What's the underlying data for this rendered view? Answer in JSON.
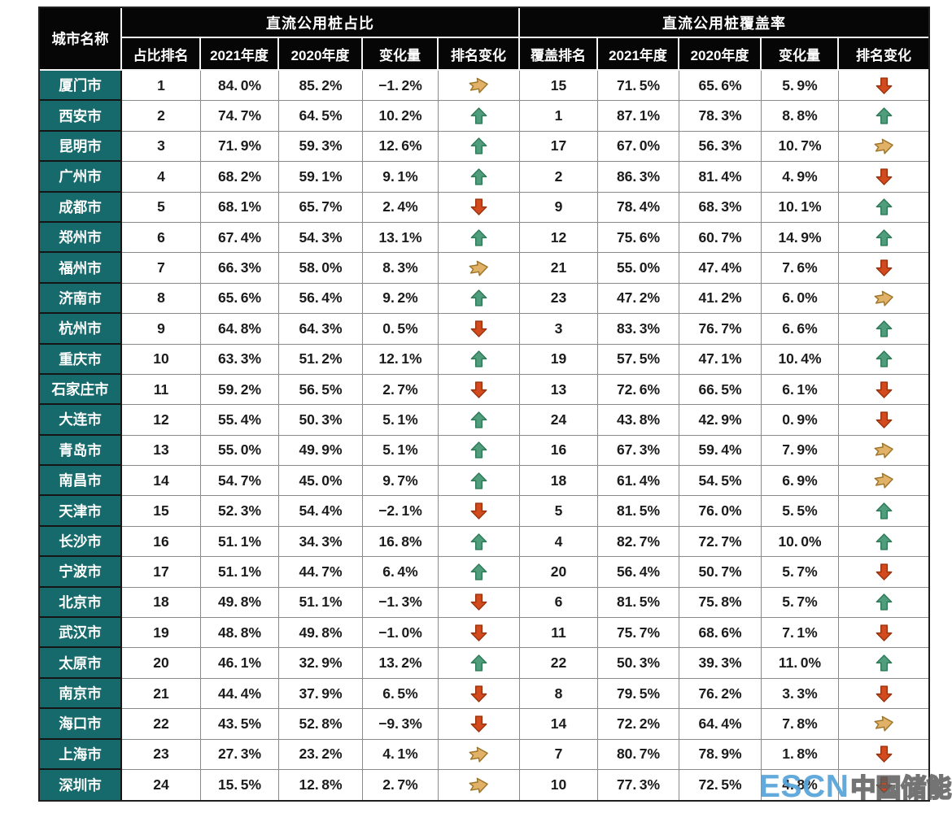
{
  "colors": {
    "header_bg": "#060606",
    "header_text": "#ffffff",
    "city_bg": "#166a6b",
    "city_text": "#ffffff",
    "grid_line": "#8a8a8a",
    "cell_text": "#1b1b1b",
    "up_arrow": "#4f9d7c",
    "up_arrow_edge": "#2e7a57",
    "down_arrow": "#d34a1e",
    "down_arrow_edge": "#99330f",
    "right_arrow": "#e0b166",
    "right_arrow_edge": "#9b742a",
    "watermark_blue": "#57a4d9"
  },
  "watermark": {
    "logo_text": "ESCN",
    "site_text": "中国储能网"
  },
  "chart_data": {
    "type": "table",
    "corner_header": "城市名称",
    "groups": [
      {
        "title": "直流公用桩占比",
        "columns": [
          "占比排名",
          "2021年度",
          "2020年度",
          "变化量",
          "排名变化"
        ]
      },
      {
        "title": "直流公用桩覆盖率",
        "columns": [
          "覆盖排名",
          "2021年度",
          "2020年度",
          "变化量",
          "排名变化"
        ]
      }
    ],
    "value_unit": "%",
    "trend_legend": {
      "up": "排名上升(绿色上箭头)",
      "right": "排名持平(黄色右箭头)",
      "down": "排名下降(红色下箭头)"
    },
    "rows": [
      {
        "city": "厦门市",
        "share": {
          "rank": 1,
          "y2021": 84.0,
          "y2020": 85.2,
          "change": -1.2,
          "trend": "right"
        },
        "coverage": {
          "rank": 15,
          "y2021": 71.5,
          "y2020": 65.6,
          "change": 5.9,
          "trend": "down"
        }
      },
      {
        "city": "西安市",
        "share": {
          "rank": 2,
          "y2021": 74.7,
          "y2020": 64.5,
          "change": 10.2,
          "trend": "up"
        },
        "coverage": {
          "rank": 1,
          "y2021": 87.1,
          "y2020": 78.3,
          "change": 8.8,
          "trend": "up"
        }
      },
      {
        "city": "昆明市",
        "share": {
          "rank": 3,
          "y2021": 71.9,
          "y2020": 59.3,
          "change": 12.6,
          "trend": "up"
        },
        "coverage": {
          "rank": 17,
          "y2021": 67.0,
          "y2020": 56.3,
          "change": 10.7,
          "trend": "right"
        }
      },
      {
        "city": "广州市",
        "share": {
          "rank": 4,
          "y2021": 68.2,
          "y2020": 59.1,
          "change": 9.1,
          "trend": "up"
        },
        "coverage": {
          "rank": 2,
          "y2021": 86.3,
          "y2020": 81.4,
          "change": 4.9,
          "trend": "down"
        }
      },
      {
        "city": "成都市",
        "share": {
          "rank": 5,
          "y2021": 68.1,
          "y2020": 65.7,
          "change": 2.4,
          "trend": "down"
        },
        "coverage": {
          "rank": 9,
          "y2021": 78.4,
          "y2020": 68.3,
          "change": 10.1,
          "trend": "up"
        }
      },
      {
        "city": "郑州市",
        "share": {
          "rank": 6,
          "y2021": 67.4,
          "y2020": 54.3,
          "change": 13.1,
          "trend": "up"
        },
        "coverage": {
          "rank": 12,
          "y2021": 75.6,
          "y2020": 60.7,
          "change": 14.9,
          "trend": "up"
        }
      },
      {
        "city": "福州市",
        "share": {
          "rank": 7,
          "y2021": 66.3,
          "y2020": 58.0,
          "change": 8.3,
          "trend": "right"
        },
        "coverage": {
          "rank": 21,
          "y2021": 55.0,
          "y2020": 47.4,
          "change": 7.6,
          "trend": "down"
        }
      },
      {
        "city": "济南市",
        "share": {
          "rank": 8,
          "y2021": 65.6,
          "y2020": 56.4,
          "change": 9.2,
          "trend": "up"
        },
        "coverage": {
          "rank": 23,
          "y2021": 47.2,
          "y2020": 41.2,
          "change": 6.0,
          "trend": "right"
        }
      },
      {
        "city": "杭州市",
        "share": {
          "rank": 9,
          "y2021": 64.8,
          "y2020": 64.3,
          "change": 0.5,
          "trend": "down"
        },
        "coverage": {
          "rank": 3,
          "y2021": 83.3,
          "y2020": 76.7,
          "change": 6.6,
          "trend": "up"
        }
      },
      {
        "city": "重庆市",
        "share": {
          "rank": 10,
          "y2021": 63.3,
          "y2020": 51.2,
          "change": 12.1,
          "trend": "up"
        },
        "coverage": {
          "rank": 19,
          "y2021": 57.5,
          "y2020": 47.1,
          "change": 10.4,
          "trend": "up"
        }
      },
      {
        "city": "石家庄市",
        "share": {
          "rank": 11,
          "y2021": 59.2,
          "y2020": 56.5,
          "change": 2.7,
          "trend": "down"
        },
        "coverage": {
          "rank": 13,
          "y2021": 72.6,
          "y2020": 66.5,
          "change": 6.1,
          "trend": "down"
        }
      },
      {
        "city": "大连市",
        "share": {
          "rank": 12,
          "y2021": 55.4,
          "y2020": 50.3,
          "change": 5.1,
          "trend": "up"
        },
        "coverage": {
          "rank": 24,
          "y2021": 43.8,
          "y2020": 42.9,
          "change": 0.9,
          "trend": "down"
        }
      },
      {
        "city": "青岛市",
        "share": {
          "rank": 13,
          "y2021": 55.0,
          "y2020": 49.9,
          "change": 5.1,
          "trend": "up"
        },
        "coverage": {
          "rank": 16,
          "y2021": 67.3,
          "y2020": 59.4,
          "change": 7.9,
          "trend": "right"
        }
      },
      {
        "city": "南昌市",
        "share": {
          "rank": 14,
          "y2021": 54.7,
          "y2020": 45.0,
          "change": 9.7,
          "trend": "up"
        },
        "coverage": {
          "rank": 18,
          "y2021": 61.4,
          "y2020": 54.5,
          "change": 6.9,
          "trend": "right"
        }
      },
      {
        "city": "天津市",
        "share": {
          "rank": 15,
          "y2021": 52.3,
          "y2020": 54.4,
          "change": -2.1,
          "trend": "down"
        },
        "coverage": {
          "rank": 5,
          "y2021": 81.5,
          "y2020": 76.0,
          "change": 5.5,
          "trend": "up"
        }
      },
      {
        "city": "长沙市",
        "share": {
          "rank": 16,
          "y2021": 51.1,
          "y2020": 34.3,
          "change": 16.8,
          "trend": "up"
        },
        "coverage": {
          "rank": 4,
          "y2021": 82.7,
          "y2020": 72.7,
          "change": 10.0,
          "trend": "up"
        }
      },
      {
        "city": "宁波市",
        "share": {
          "rank": 17,
          "y2021": 51.1,
          "y2020": 44.7,
          "change": 6.4,
          "trend": "up"
        },
        "coverage": {
          "rank": 20,
          "y2021": 56.4,
          "y2020": 50.7,
          "change": 5.7,
          "trend": "down"
        }
      },
      {
        "city": "北京市",
        "share": {
          "rank": 18,
          "y2021": 49.8,
          "y2020": 51.1,
          "change": -1.3,
          "trend": "down"
        },
        "coverage": {
          "rank": 6,
          "y2021": 81.5,
          "y2020": 75.8,
          "change": 5.7,
          "trend": "up"
        }
      },
      {
        "city": "武汉市",
        "share": {
          "rank": 19,
          "y2021": 48.8,
          "y2020": 49.8,
          "change": -1.0,
          "trend": "down"
        },
        "coverage": {
          "rank": 11,
          "y2021": 75.7,
          "y2020": 68.6,
          "change": 7.1,
          "trend": "down"
        }
      },
      {
        "city": "太原市",
        "share": {
          "rank": 20,
          "y2021": 46.1,
          "y2020": 32.9,
          "change": 13.2,
          "trend": "up"
        },
        "coverage": {
          "rank": 22,
          "y2021": 50.3,
          "y2020": 39.3,
          "change": 11.0,
          "trend": "up"
        }
      },
      {
        "city": "南京市",
        "share": {
          "rank": 21,
          "y2021": 44.4,
          "y2020": 37.9,
          "change": 6.5,
          "trend": "down"
        },
        "coverage": {
          "rank": 8,
          "y2021": 79.5,
          "y2020": 76.2,
          "change": 3.3,
          "trend": "down"
        }
      },
      {
        "city": "海口市",
        "share": {
          "rank": 22,
          "y2021": 43.5,
          "y2020": 52.8,
          "change": -9.3,
          "trend": "down"
        },
        "coverage": {
          "rank": 14,
          "y2021": 72.2,
          "y2020": 64.4,
          "change": 7.8,
          "trend": "right"
        }
      },
      {
        "city": "上海市",
        "share": {
          "rank": 23,
          "y2021": 27.3,
          "y2020": 23.2,
          "change": 4.1,
          "trend": "right"
        },
        "coverage": {
          "rank": 7,
          "y2021": 80.7,
          "y2020": 78.9,
          "change": 1.8,
          "trend": "down"
        }
      },
      {
        "city": "深圳市",
        "share": {
          "rank": 24,
          "y2021": 15.5,
          "y2020": 12.8,
          "change": 2.7,
          "trend": "right"
        },
        "coverage": {
          "rank": 10,
          "y2021": 77.3,
          "y2020": 72.5,
          "change": 4.8,
          "trend": "down"
        }
      }
    ]
  }
}
